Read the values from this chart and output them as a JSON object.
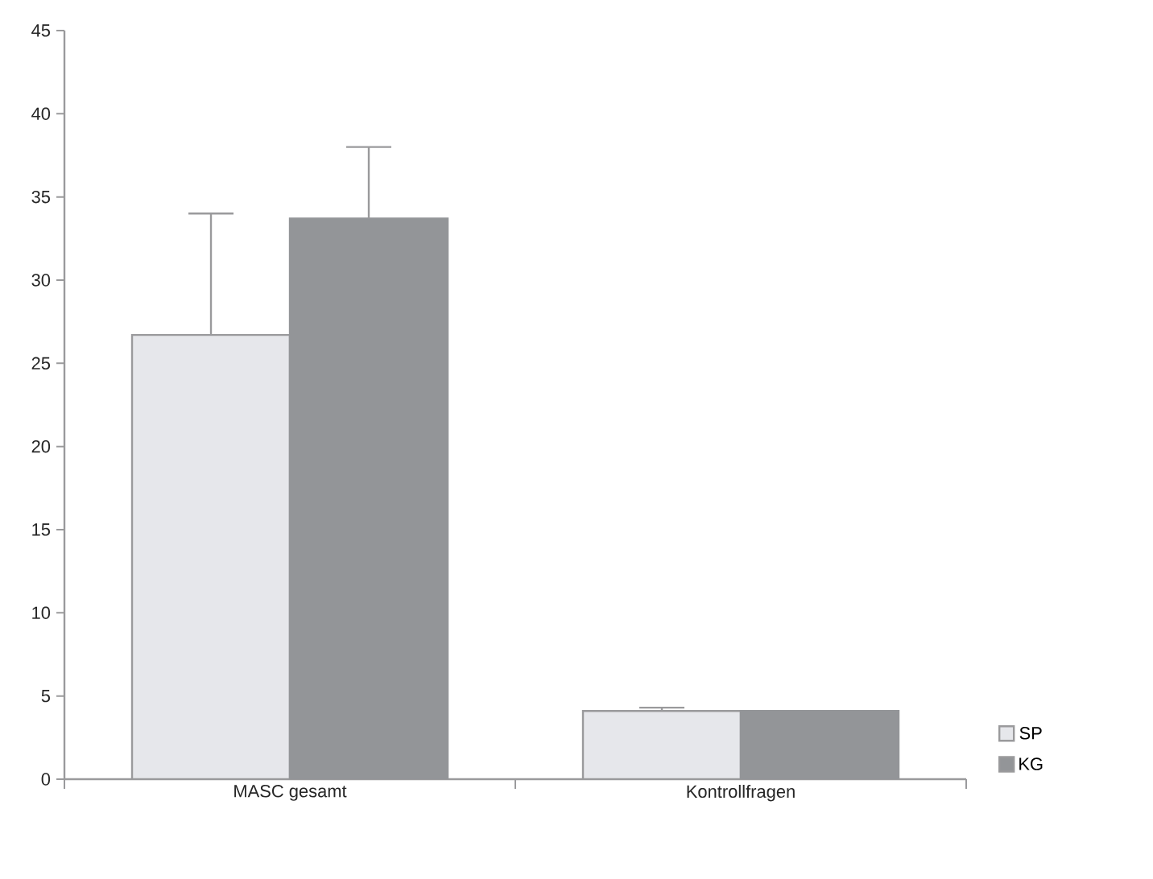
{
  "chart_data": {
    "type": "bar",
    "categories": [
      "MASC gesamt",
      "Kontrollfragen"
    ],
    "series": [
      {
        "name": "SP",
        "color": "#e6e7eb",
        "values": [
          26.7,
          4.1
        ],
        "errors": [
          [
            26.7,
            34.0
          ],
          [
            4.1,
            4.3
          ]
        ]
      },
      {
        "name": "KG",
        "color": "#939598",
        "values": [
          33.7,
          4.1
        ],
        "errors": [
          [
            33.7,
            38.0
          ],
          null
        ]
      }
    ],
    "ylim": [
      0,
      45
    ],
    "yticks": [
      0,
      5,
      10,
      15,
      20,
      25,
      30,
      35,
      40,
      45
    ],
    "grid": false,
    "legend": "right"
  }
}
